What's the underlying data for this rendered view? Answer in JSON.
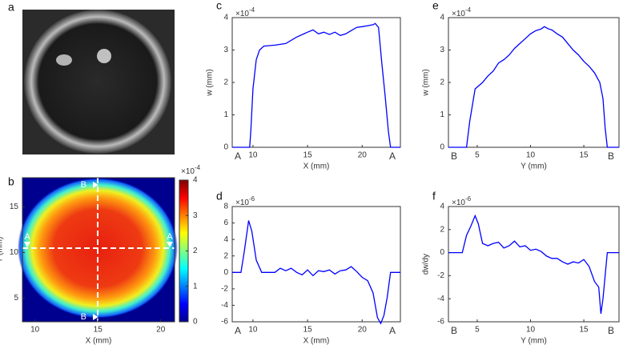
{
  "chart_data": [
    {
      "type": "image",
      "panel_label": "a"
    },
    {
      "type": "heatmap",
      "panel_label": "b",
      "xlabel": "X (mm)",
      "ylabel": "Y (mm)",
      "xlim": [
        9,
        21.1
      ],
      "xticks": [
        10,
        15,
        20
      ],
      "ylim": [
        2.4,
        18.2
      ],
      "yticks": [
        5,
        10,
        15
      ],
      "clim": [
        0,
        4
      ],
      "cticks": [
        0,
        1,
        2,
        3,
        4
      ],
      "multiplier_base": "×10",
      "multiplier_power": "-4",
      "markers": [
        "A",
        "A",
        "B",
        "B"
      ]
    },
    {
      "type": "line",
      "panel_label": "c",
      "xlabel": "X (mm)",
      "ylabel": "w (mm)",
      "color": "#0000ff",
      "multiplier_base": "×10",
      "multiplier_power": "-4",
      "end_labels": [
        "A",
        "A"
      ],
      "xlim": [
        8.1,
        23.5
      ],
      "xticks": [
        10,
        15,
        20
      ],
      "ylim": [
        0,
        4
      ],
      "yticks": [
        0,
        1,
        2,
        3,
        4
      ],
      "x": [
        8.1,
        9.7,
        9.8,
        10.0,
        10.3,
        10.6,
        11.0,
        12.0,
        13.0,
        14.0,
        15.0,
        15.5,
        16.0,
        16.5,
        17.0,
        17.5,
        18.0,
        18.5,
        19.0,
        19.5,
        20.0,
        20.5,
        21.0,
        21.2,
        21.5,
        21.8,
        22.1,
        22.4,
        22.6,
        23.5
      ],
      "values": [
        0,
        0,
        0.5,
        1.8,
        2.7,
        3.0,
        3.12,
        3.15,
        3.2,
        3.4,
        3.55,
        3.62,
        3.5,
        3.55,
        3.48,
        3.55,
        3.45,
        3.5,
        3.6,
        3.7,
        3.72,
        3.75,
        3.78,
        3.82,
        3.7,
        2.6,
        1.6,
        0.5,
        0,
        0
      ]
    },
    {
      "type": "line",
      "panel_label": "d",
      "xlabel": "X (mm)",
      "color": "#0000ff",
      "multiplier_base": "×10",
      "multiplier_power": "-6",
      "end_labels": [
        "A",
        "A"
      ],
      "xlim": [
        8.1,
        23.5
      ],
      "xticks": [
        10,
        15,
        20
      ],
      "ylim": [
        -6,
        8
      ],
      "yticks": [
        -6,
        -4,
        -2,
        0,
        2,
        4,
        6,
        8
      ],
      "x": [
        8.1,
        8.9,
        9.2,
        9.6,
        9.9,
        10.3,
        10.8,
        11.5,
        12.0,
        12.5,
        13,
        13.5,
        14,
        14.5,
        15,
        15.5,
        16,
        16.5,
        17,
        17.5,
        18,
        18.5,
        19,
        19.5,
        20,
        20.5,
        21,
        21.4,
        21.7,
        22.0,
        22.3,
        22.6,
        23.5
      ],
      "values": [
        0,
        0,
        2.5,
        6.3,
        5,
        1.5,
        0,
        0,
        0,
        0.5,
        0.2,
        0.5,
        0,
        -0.3,
        0.3,
        -0.4,
        0.2,
        0.1,
        0.3,
        -0.2,
        0.2,
        0.3,
        0.7,
        0.1,
        -0.6,
        -1,
        -2.5,
        -5.5,
        -6.2,
        -5.2,
        -3,
        0,
        0
      ]
    },
    {
      "type": "line",
      "panel_label": "e",
      "xlabel": "Y (mm)",
      "ylabel": "w (mm)",
      "color": "#0000ff",
      "multiplier_base": "×10",
      "multiplier_power": "-4",
      "end_labels": [
        "B",
        "B"
      ],
      "xlim": [
        2.3,
        18.3
      ],
      "xticks": [
        5,
        10,
        15
      ],
      "ylim": [
        0,
        4
      ],
      "yticks": [
        0,
        1,
        2,
        3,
        4
      ],
      "x": [
        2.3,
        4.0,
        4.3,
        4.8,
        5.5,
        6,
        6.5,
        7,
        7.5,
        8,
        8.5,
        9,
        9.5,
        10,
        10.5,
        11,
        11.3,
        11.7,
        12,
        12.5,
        13,
        13.5,
        14,
        14.5,
        15,
        15.5,
        16,
        16.5,
        16.8,
        17.0,
        17.2,
        18.3
      ],
      "values": [
        0,
        0,
        0.8,
        1.8,
        2.0,
        2.2,
        2.35,
        2.6,
        2.7,
        2.85,
        3.05,
        3.2,
        3.35,
        3.5,
        3.6,
        3.65,
        3.72,
        3.65,
        3.62,
        3.5,
        3.4,
        3.2,
        3.0,
        2.85,
        2.65,
        2.5,
        2.3,
        2.0,
        1.5,
        0.6,
        0,
        0
      ]
    },
    {
      "type": "line",
      "panel_label": "f",
      "xlabel": "Y (mm)",
      "ylabel": "dw/dy",
      "color": "#0000ff",
      "multiplier_base": "×10",
      "multiplier_power": "-6",
      "end_labels": [
        "B",
        "B"
      ],
      "xlim": [
        2.3,
        18.3
      ],
      "xticks": [
        5,
        10,
        15
      ],
      "ylim": [
        -6,
        4
      ],
      "yticks": [
        -6,
        -4,
        -2,
        0,
        2,
        4
      ],
      "x": [
        2.3,
        3.6,
        4.0,
        4.4,
        4.8,
        5.1,
        5.5,
        6,
        6.5,
        7,
        7.5,
        8,
        8.5,
        9,
        9.5,
        10,
        10.5,
        11,
        11.5,
        12,
        12.5,
        13,
        13.5,
        14,
        14.5,
        15,
        15.5,
        16,
        16.4,
        16.6,
        16.8,
        17.2,
        18.3
      ],
      "values": [
        0,
        0,
        1.5,
        2.3,
        3.2,
        2.5,
        0.8,
        0.6,
        0.8,
        0.9,
        0.4,
        0.6,
        1.0,
        0.5,
        0.6,
        0.2,
        0.3,
        0.1,
        -0.3,
        -0.5,
        -0.5,
        -0.8,
        -1.0,
        -0.8,
        -0.9,
        -0.6,
        -1.2,
        -2.5,
        -3,
        -5.3,
        -4,
        0,
        0
      ]
    }
  ]
}
